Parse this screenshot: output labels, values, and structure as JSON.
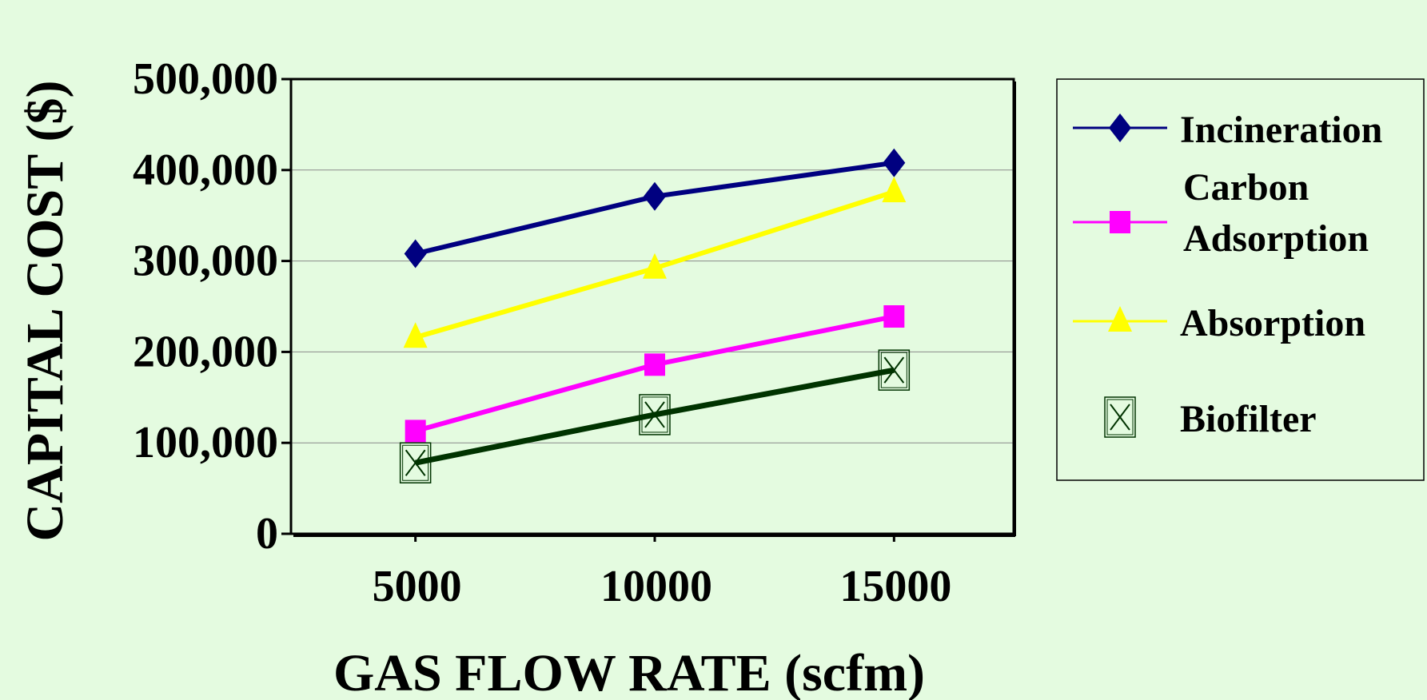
{
  "chart_data": {
    "type": "line",
    "title": "",
    "xlabel": "GAS FLOW RATE (scfm)",
    "ylabel": "CAPITAL COST ($)",
    "x": [
      5000,
      10000,
      15000
    ],
    "x_tick_labels": [
      "5000",
      "10000",
      "15000"
    ],
    "xlim": [
      2400,
      17500
    ],
    "ylim": [
      0,
      500000
    ],
    "y_ticks": [
      0,
      100000,
      200000,
      300000,
      400000,
      500000
    ],
    "y_tick_labels": [
      "0",
      "100,000",
      "200,000",
      "300,000",
      "400,000",
      "500,000"
    ],
    "grid": "horizontal",
    "legend_placement": "right",
    "series": [
      {
        "name": "Incineration",
        "values": [
          308000,
          371000,
          408000
        ],
        "color": "#000080",
        "marker": "diamond"
      },
      {
        "name": "Carbon Adsorption",
        "name_lines": [
          "Carbon",
          "Adsorption"
        ],
        "values": [
          113000,
          186000,
          239000
        ],
        "color": "#ff00ff",
        "marker": "square"
      },
      {
        "name": "Absorption",
        "values": [
          216000,
          292000,
          376000
        ],
        "color": "#ffff00",
        "marker": "triangle"
      },
      {
        "name": "Biofilter",
        "values": [
          78000,
          131000,
          180000
        ],
        "color": "#003300",
        "marker": "boxed-x"
      }
    ]
  }
}
